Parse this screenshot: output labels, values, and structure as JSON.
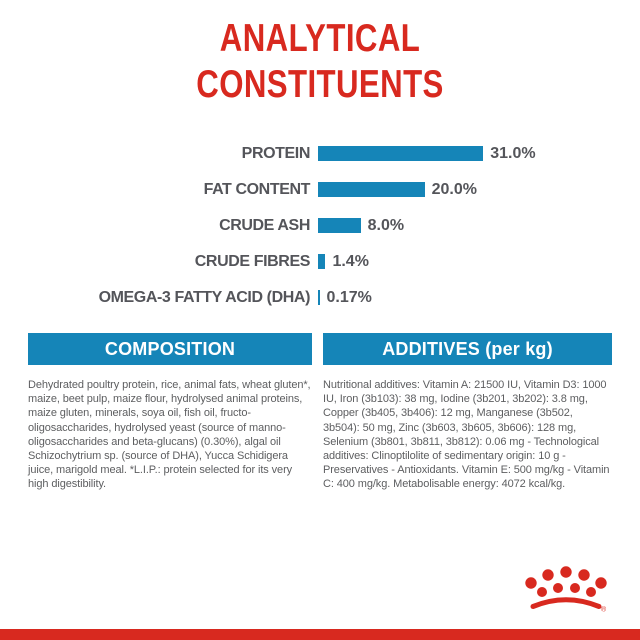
{
  "title": {
    "line1": "ANALYTICAL",
    "line2": "CONSTITUENTS"
  },
  "chart_data": {
    "type": "bar",
    "orientation": "horizontal",
    "title": "ANALYTICAL CONSTITUENTS",
    "categories": [
      "PROTEIN",
      "FAT CONTENT",
      "CRUDE ASH",
      "CRUDE FIBRES",
      "OMEGA-3 FATTY ACID (DHA)"
    ],
    "values": [
      31.0,
      20.0,
      8.0,
      1.4,
      0.17
    ],
    "value_labels": [
      "31.0%",
      "20.0%",
      "8.0%",
      "1.4%",
      "0.17%"
    ],
    "unit": "%",
    "xlim": [
      0,
      33
    ],
    "grid": false,
    "legend": "none",
    "bar_color": "#1585b8"
  },
  "sections": {
    "composition": {
      "header": "COMPOSITION",
      "body": "Dehydrated poultry protein, rice, animal fats, wheat gluten*, maize, beet pulp, maize flour, hydrolysed animal proteins, maize gluten, minerals, soya oil, fish oil, fructo-oligosaccharides, hydrolysed yeast (source of manno-oligosaccharides and beta-glucans) (0.30%), algal oil Schizochytrium sp. (source of DHA), Yucca Schidigera juice, marigold meal. *L.I.P.: protein selected for its very high digestibility."
    },
    "additives": {
      "header": "ADDITIVES (per kg)",
      "body": "Nutritional additives: Vitamin A: 21500 IU, Vitamin D3: 1000 IU, Iron (3b103): 38 mg, Iodine (3b201, 3b202): 3.8 mg, Copper (3b405, 3b406): 12 mg, Manganese (3b502, 3b504): 50 mg, Zinc (3b603, 3b605, 3b606): 128 mg, Selenium (3b801, 3b811, 3b812): 0.06 mg - Technological additives: Clinoptilolite of sedimentary origin: 10 g - Preservatives - Antioxidants. Vitamin E: 500 mg/kg - Vitamin C: 400 mg/kg. Metabolisable energy: 4072 kcal/kg."
    }
  },
  "brand": {
    "logo": "royal-canin-crown",
    "registered": "®",
    "red": "#d8291f",
    "blue": "#1585b8"
  }
}
